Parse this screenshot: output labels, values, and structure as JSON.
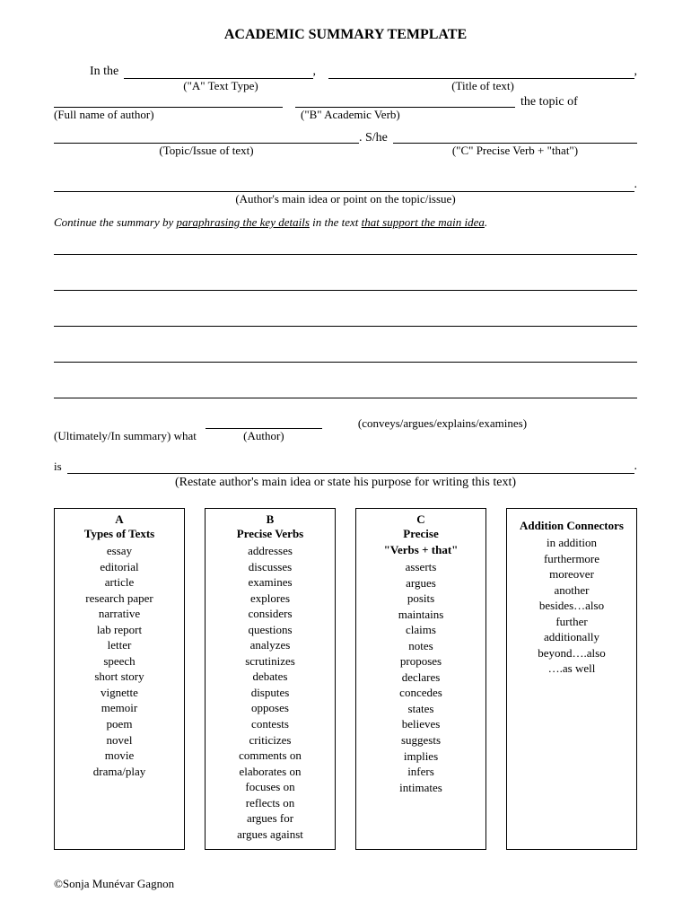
{
  "title": "ACADEMIC SUMMARY TEMPLATE",
  "line1": {
    "prefix": "In the",
    "blank1_caption": "(\"A\" Text Type)",
    "blank2_caption": "(Title of  text)"
  },
  "line2": {
    "blank1_caption": "(Full name of author)",
    "blank2_caption": "(\"B\" Academic Verb)",
    "suffix": "the topic of"
  },
  "line3": {
    "blank1_caption": "(Topic/Issue of text)",
    "mid": ".  S/he",
    "blank2_caption": "(\"C\" Precise Verb + \"that\")"
  },
  "line4": {
    "caption": "(Author's main idea or point on the topic/issue)"
  },
  "instruction": {
    "t1": "Continue the summary by ",
    "u1": "paraphrasing the key details",
    "t2": " in the text ",
    "u2": "that support the main idea",
    "t3": "."
  },
  "summary": {
    "prefix": "(Ultimately/In summary)   what",
    "author_caption": "(Author)",
    "conveys": "(conveys/argues/explains/examines)"
  },
  "is_row": {
    "prefix": "is",
    "caption": "(Restate author's main idea or state his purpose for writing this text)"
  },
  "boxes": {
    "a": {
      "letter": "A",
      "title": "Types of Texts",
      "items": [
        "essay",
        "editorial",
        "article",
        "research paper",
        "narrative",
        "lab report",
        "letter",
        "speech",
        "short story",
        "vignette",
        "memoir",
        "poem",
        "novel",
        "movie",
        "drama/play"
      ]
    },
    "b": {
      "letter": "B",
      "title": "Precise Verbs",
      "items": [
        "addresses",
        "discusses",
        "examines",
        "explores",
        "considers",
        "questions",
        "analyzes",
        "scrutinizes",
        "debates",
        "disputes",
        "opposes",
        "contests",
        "criticizes",
        "comments on",
        "elaborates on",
        "focuses on",
        "reflects on",
        "argues for",
        "argues against"
      ]
    },
    "c": {
      "letter": "C",
      "title1": "Precise",
      "title2": "\"Verbs + that\"",
      "items": [
        "asserts",
        "argues",
        "posits",
        "maintains",
        "claims",
        "notes",
        "proposes",
        "declares",
        "concedes",
        "states",
        "believes",
        "suggests",
        "implies",
        "infers",
        "intimates"
      ]
    },
    "d": {
      "title": "Addition Connectors",
      "items": [
        "in addition",
        "furthermore",
        "moreover",
        "another",
        "besides…also",
        "further",
        "additionally",
        "beyond….also",
        "….as well"
      ]
    }
  },
  "footer": "©Sonja Munévar Gagnon"
}
